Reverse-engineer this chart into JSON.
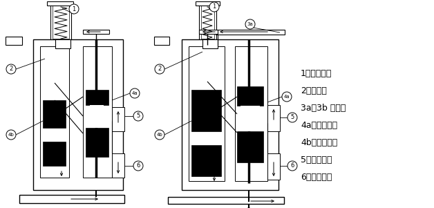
{
  "bg_color": "#ffffff",
  "legend_items": [
    "1、调整谺丝",
    "2、指示杆",
    "3a、3b 供油管",
    "4a、控制活塞",
    "4b、工作活塞",
    "5、上给油管",
    "6、下给油管"
  ],
  "font_size_legend": 9,
  "figsize": [
    6.28,
    3.01
  ],
  "dpi": 100
}
